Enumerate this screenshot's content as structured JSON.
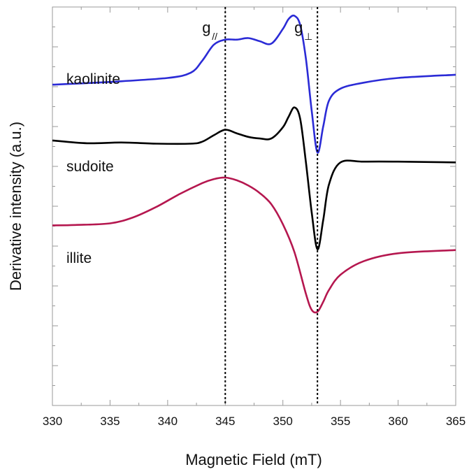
{
  "chart_data": {
    "type": "line",
    "title": "",
    "xlabel": "Magnetic Field (mT)",
    "ylabel": "Derivative intensity (a.u.)",
    "xlim": [
      330,
      365
    ],
    "ylim": [
      0,
      10
    ],
    "grid": false,
    "x_ticks": [
      330,
      335,
      340,
      345,
      350,
      355,
      360,
      365
    ],
    "x_tick_labels": [
      "330",
      "335",
      "340",
      "345",
      "350",
      "355",
      "360",
      "365"
    ],
    "y_tick_labels_shown": false,
    "annotations": [
      {
        "label": "g",
        "sub": "//",
        "x": 345
      },
      {
        "label": "g",
        "sub": "⊥",
        "x": 353
      }
    ],
    "series": [
      {
        "name": "kaolinite",
        "color": "#2b2bd6",
        "x": [
          330,
          335,
          340,
          342,
          343,
          344,
          345,
          346,
          347,
          348,
          349,
          350,
          350.5,
          351,
          351.5,
          352,
          352.5,
          353,
          353.5,
          354,
          355,
          357,
          360,
          365
        ],
        "y": [
          8.05,
          8.12,
          8.22,
          8.35,
          8.65,
          9.05,
          9.18,
          9.18,
          9.22,
          9.14,
          9.08,
          9.45,
          9.7,
          9.78,
          9.55,
          8.7,
          7.4,
          6.35,
          7.0,
          7.65,
          7.95,
          8.1,
          8.22,
          8.3
        ]
      },
      {
        "name": "sudoite",
        "color": "#000000",
        "x": [
          330,
          333,
          336,
          339,
          342,
          343,
          344,
          345,
          346,
          347,
          348,
          349,
          350,
          350.5,
          351,
          351.5,
          352,
          352.5,
          353,
          353.5,
          354,
          355,
          357,
          360,
          365
        ],
        "y": [
          6.65,
          6.58,
          6.6,
          6.57,
          6.57,
          6.62,
          6.78,
          6.92,
          6.83,
          6.74,
          6.7,
          6.7,
          6.98,
          7.25,
          7.48,
          7.2,
          6.1,
          4.85,
          3.92,
          4.65,
          5.55,
          6.1,
          6.12,
          6.12,
          6.1
        ]
      },
      {
        "name": "illite",
        "color": "#b5174f",
        "x": [
          330,
          332,
          335,
          337,
          339,
          341,
          343,
          344,
          345,
          346,
          347,
          348,
          349,
          350,
          351,
          352,
          352.5,
          353,
          353.5,
          354,
          355,
          357,
          360,
          365
        ],
        "y": [
          4.52,
          4.53,
          4.57,
          4.72,
          4.98,
          5.3,
          5.58,
          5.68,
          5.72,
          5.65,
          5.52,
          5.33,
          5.05,
          4.55,
          3.85,
          2.8,
          2.4,
          2.35,
          2.6,
          2.9,
          3.28,
          3.62,
          3.82,
          3.9
        ]
      }
    ]
  }
}
